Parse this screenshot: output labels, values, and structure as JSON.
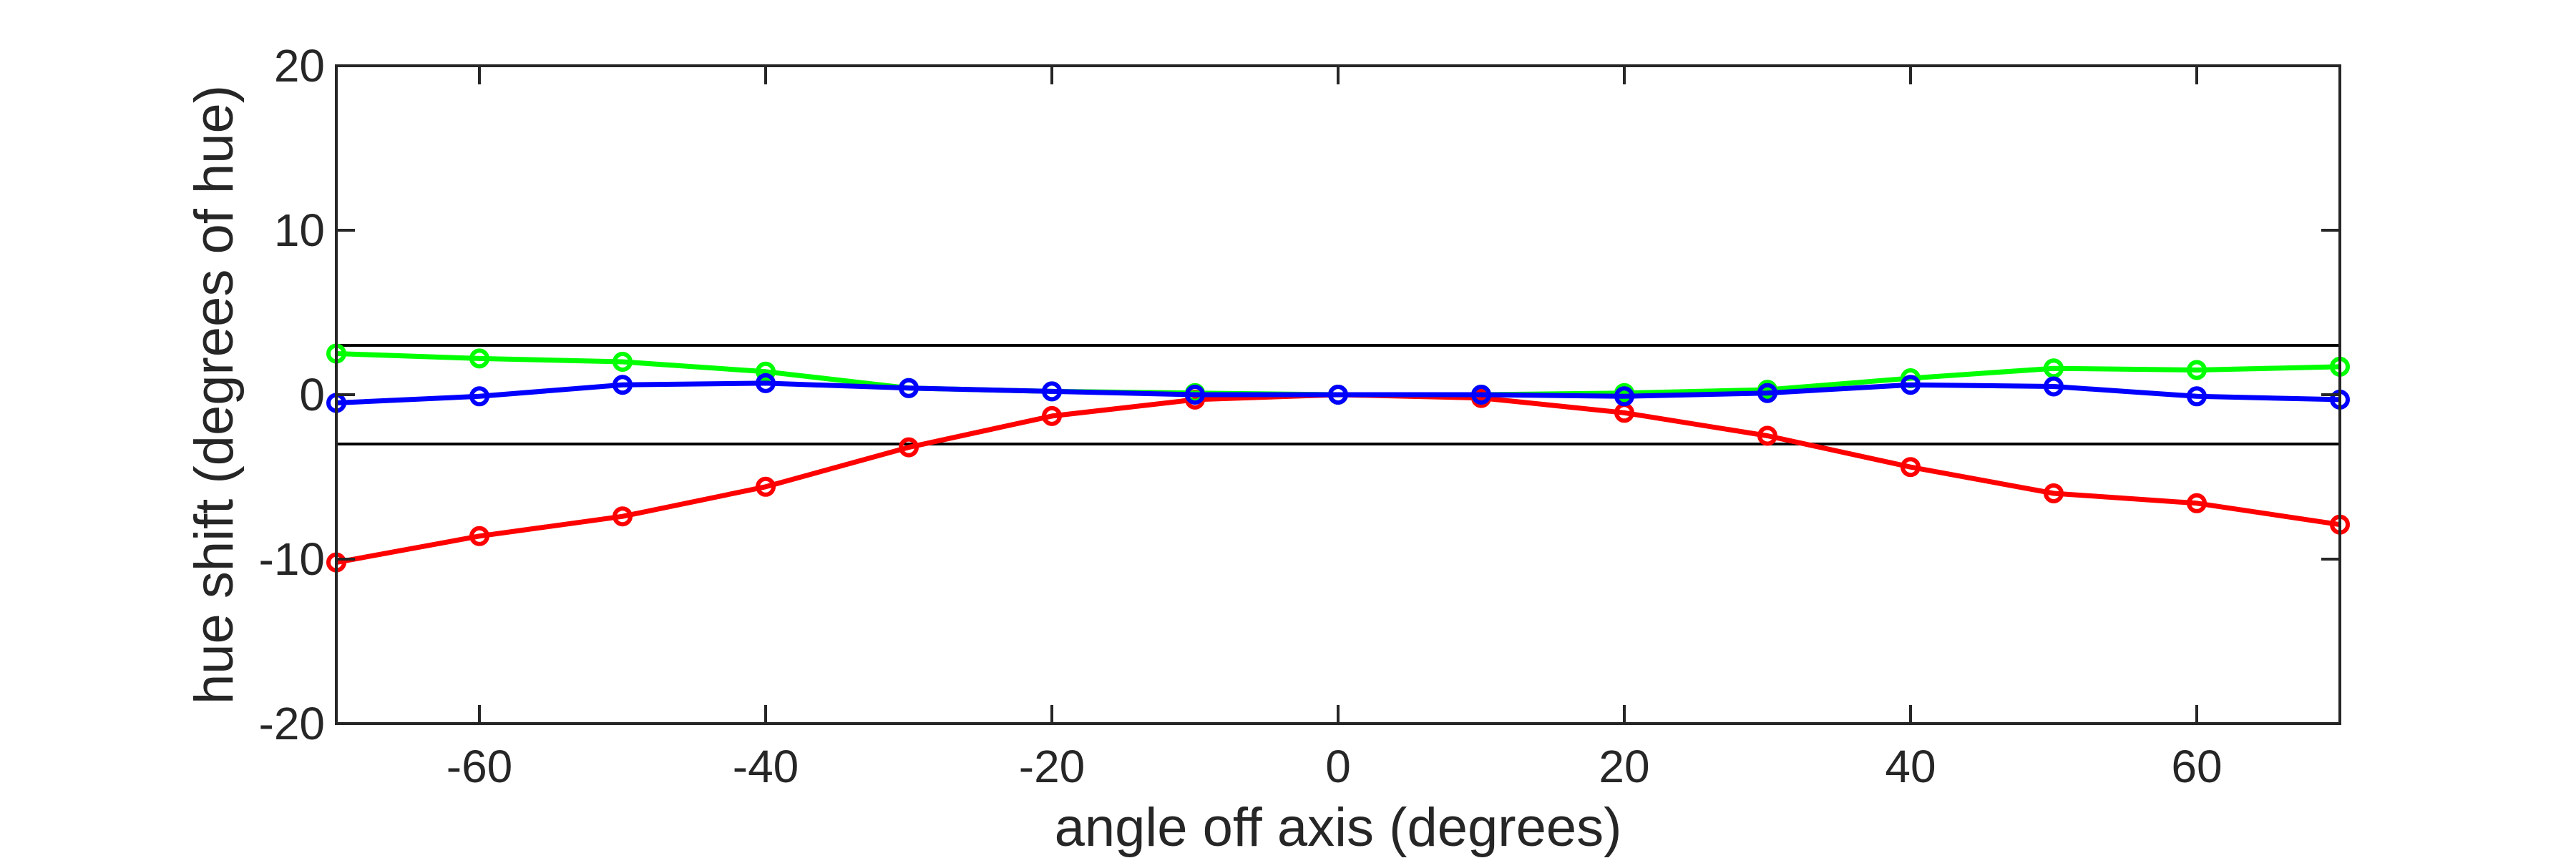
{
  "chart_data": {
    "type": "line",
    "xlabel": "angle off axis (degrees)",
    "ylabel": "hue shift (degrees of hue)",
    "xlim": [
      -70,
      70
    ],
    "ylim": [
      -20,
      20
    ],
    "xticks": [
      -60,
      -40,
      -20,
      0,
      20,
      40,
      60
    ],
    "yticks": [
      -20,
      -10,
      0,
      10,
      20
    ],
    "reference_lines_y": [
      3,
      -3
    ],
    "grid": false,
    "legend": "none",
    "x": [
      -70,
      -60,
      -50,
      -40,
      -30,
      -20,
      -10,
      0,
      10,
      20,
      30,
      40,
      50,
      60,
      70
    ],
    "series": [
      {
        "color": "#ff0000",
        "values": [
          -10.2,
          -8.6,
          -7.4,
          -5.6,
          -3.2,
          -1.3,
          -0.3,
          0,
          -0.2,
          -1.1,
          -2.5,
          -4.4,
          -6.0,
          -6.6,
          -7.9
        ]
      },
      {
        "color": "#00ff00",
        "values": [
          2.5,
          2.2,
          2.0,
          1.4,
          0.4,
          0.2,
          0.1,
          0,
          0.0,
          0.1,
          0.3,
          1.0,
          1.6,
          1.5,
          1.7
        ]
      },
      {
        "color": "#0000ff",
        "values": [
          -0.5,
          -0.1,
          0.6,
          0.7,
          0.4,
          0.2,
          0.0,
          0,
          0.0,
          -0.1,
          0.1,
          0.6,
          0.5,
          -0.1,
          -0.3
        ]
      }
    ]
  }
}
